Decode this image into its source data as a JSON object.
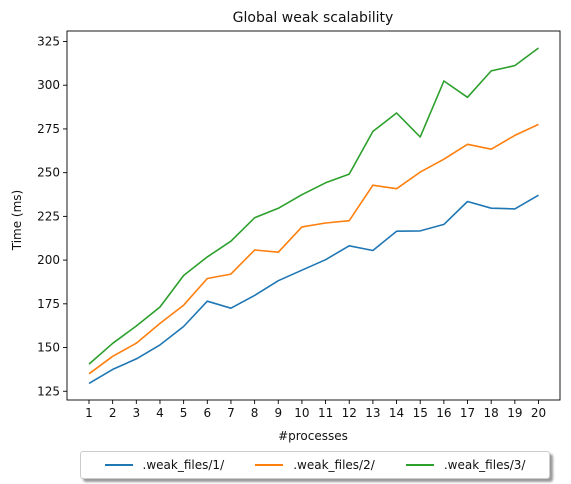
{
  "chart_data": {
    "type": "line",
    "title": "Global weak scalability",
    "xlabel": "#processes",
    "ylabel": "Time (ms)",
    "categories": [
      "1",
      "2",
      "3",
      "4",
      "5",
      "6",
      "7",
      "8",
      "9",
      "10",
      "11",
      "12",
      "13",
      "14",
      "15",
      "16",
      "17",
      "18",
      "19",
      "20"
    ],
    "ylim": [
      120,
      331
    ],
    "yticks": [
      125,
      150,
      175,
      200,
      225,
      250,
      275,
      300,
      325
    ],
    "grid": false,
    "legend_position": "bottom-center",
    "series": [
      {
        "name": ".weak_files/1/",
        "color": "#1f77b4",
        "values": [
          129.5,
          137.5,
          143.5,
          151.5,
          162,
          176.5,
          172.5,
          179.8,
          188.2,
          194.2,
          200.2,
          208.2,
          205.5,
          216.5,
          216.7,
          220.4,
          233.5,
          229.7,
          229.3,
          237.1
        ]
      },
      {
        "name": ".weak_files/2/",
        "color": "#ff7f0e",
        "values": [
          135,
          145,
          152.5,
          163.8,
          174.2,
          189.5,
          192,
          205.8,
          204.5,
          219,
          221.2,
          222.5,
          242.8,
          240.8,
          250.3,
          257.7,
          266.2,
          263.4,
          271.3,
          277.6
        ]
      },
      {
        "name": ".weak_files/3/",
        "color": "#2ca02c",
        "values": [
          140.5,
          152.4,
          162.3,
          173.2,
          191.2,
          201.8,
          210.8,
          224.2,
          229.6,
          237.4,
          244.2,
          249.2,
          273.6,
          284.1,
          270.4,
          302.4,
          293.1,
          308.2,
          311.2,
          321.3
        ]
      }
    ]
  }
}
